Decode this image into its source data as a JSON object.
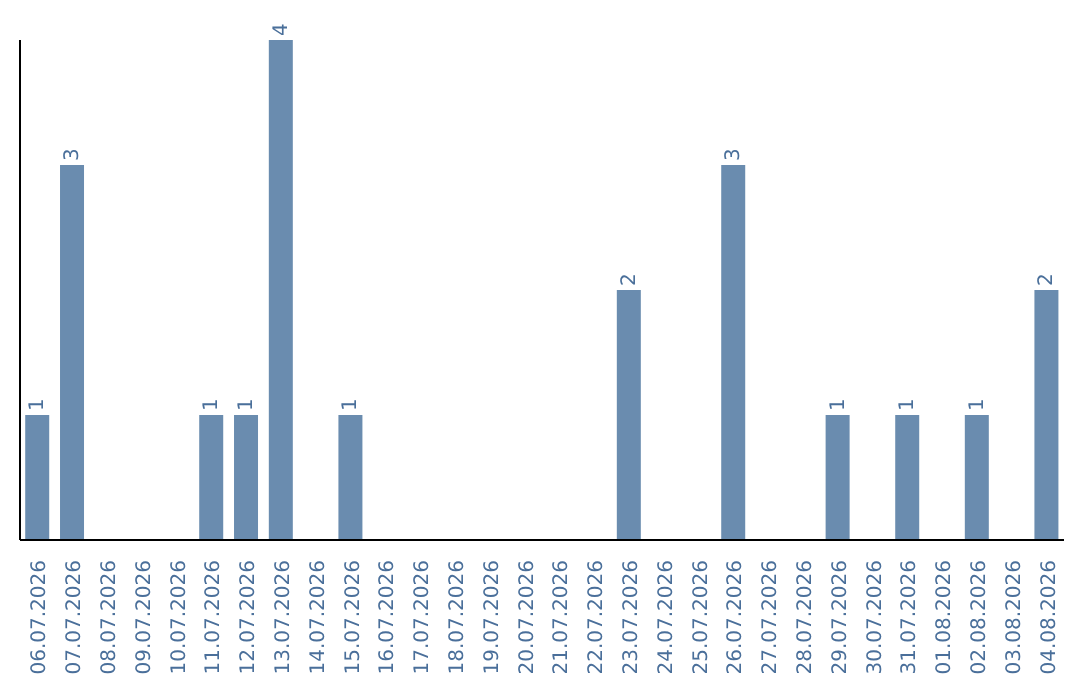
{
  "chart_data": {
    "type": "bar",
    "categories": [
      "06.07.2026",
      "07.07.2026",
      "08.07.2026",
      "09.07.2026",
      "10.07.2026",
      "11.07.2026",
      "12.07.2026",
      "13.07.2026",
      "14.07.2026",
      "15.07.2026",
      "16.07.2026",
      "17.07.2026",
      "18.07.2026",
      "19.07.2026",
      "20.07.2026",
      "21.07.2026",
      "22.07.2026",
      "23.07.2026",
      "24.07.2026",
      "25.07.2026",
      "26.07.2026",
      "27.07.2026",
      "28.07.2026",
      "29.07.2026",
      "30.07.2026",
      "31.07.2026",
      "01.08.2026",
      "02.08.2026",
      "03.08.2026",
      "04.08.2026"
    ],
    "values": [
      1,
      3,
      0,
      0,
      0,
      1,
      1,
      4,
      0,
      1,
      0,
      0,
      0,
      0,
      0,
      0,
      0,
      2,
      0,
      0,
      3,
      0,
      0,
      1,
      0,
      1,
      0,
      1,
      0,
      2
    ],
    "value_labels": [
      "1",
      "3",
      null,
      null,
      null,
      "1",
      "1",
      "4",
      null,
      "1",
      null,
      null,
      null,
      null,
      null,
      null,
      null,
      "2",
      null,
      null,
      "3",
      null,
      null,
      "1",
      null,
      "1",
      null,
      "1",
      null,
      "2"
    ],
    "color": "#6a8caf",
    "ylim": [
      0,
      4
    ],
    "tick_labels": "x",
    "grid": false,
    "legend": false
  }
}
